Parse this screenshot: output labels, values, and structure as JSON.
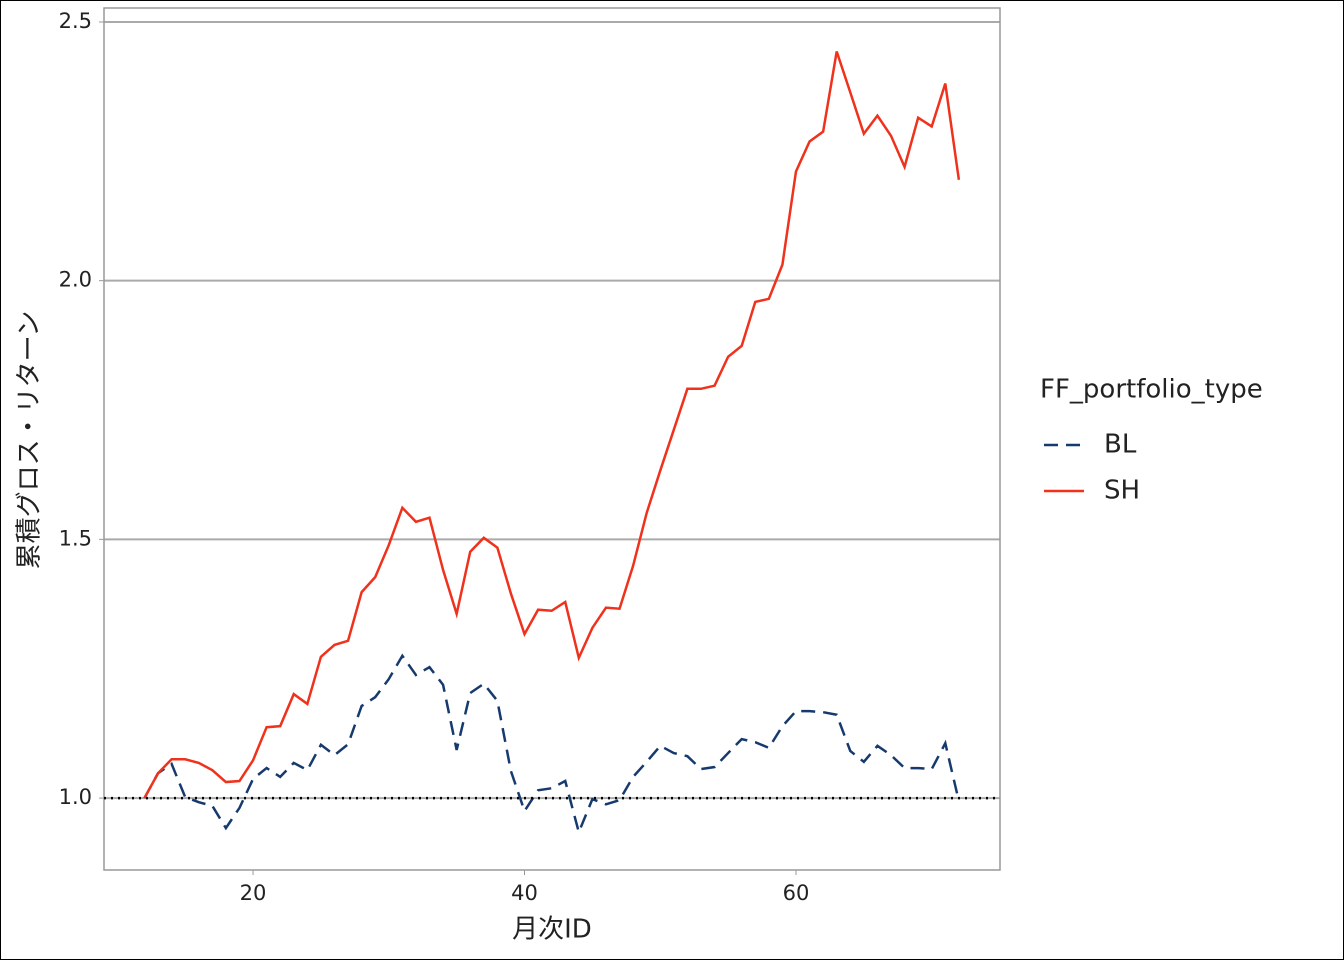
{
  "chart_data": {
    "type": "line",
    "xlabel": "月次ID",
    "ylabel": "累積グロス・リターン",
    "x": [
      12,
      13,
      14,
      15,
      16,
      17,
      18,
      19,
      20,
      21,
      22,
      23,
      24,
      25,
      26,
      27,
      28,
      29,
      30,
      31,
      32,
      33,
      34,
      35,
      36,
      37,
      38,
      39,
      40,
      41,
      42,
      43,
      44,
      45,
      46,
      47,
      48,
      49,
      50,
      51,
      52,
      53,
      54,
      55,
      56,
      57,
      58,
      59,
      60,
      61,
      62,
      63,
      64,
      65,
      66,
      67,
      68,
      69,
      70,
      71,
      72
    ],
    "series": [
      {
        "name": "BL",
        "color": "#173a6e",
        "dash": "dashed",
        "values": [
          1.0,
          1.048,
          1.066,
          1.002,
          0.992,
          0.985,
          0.942,
          0.981,
          1.037,
          1.058,
          1.041,
          1.068,
          1.054,
          1.103,
          1.083,
          1.104,
          1.178,
          1.195,
          1.23,
          1.275,
          1.238,
          1.253,
          1.219,
          1.093,
          1.203,
          1.221,
          1.188,
          1.052,
          0.975,
          1.015,
          1.019,
          1.033,
          0.934,
          0.998,
          0.988,
          0.996,
          1.041,
          1.07,
          1.101,
          1.087,
          1.081,
          1.056,
          1.06,
          1.087,
          1.114,
          1.108,
          1.097,
          1.139,
          1.168,
          1.168,
          1.166,
          1.161,
          1.091,
          1.07,
          1.101,
          1.083,
          1.058,
          1.058,
          1.056,
          1.106,
          0.994
        ]
      },
      {
        "name": "SH",
        "color": "#f0311c",
        "dash": "solid",
        "values": [
          1.0,
          1.048,
          1.075,
          1.075,
          1.068,
          1.054,
          1.031,
          1.033,
          1.073,
          1.137,
          1.139,
          1.201,
          1.182,
          1.273,
          1.296,
          1.304,
          1.398,
          1.427,
          1.489,
          1.561,
          1.534,
          1.542,
          1.441,
          1.356,
          1.476,
          1.503,
          1.484,
          1.395,
          1.317,
          1.364,
          1.362,
          1.379,
          1.271,
          1.329,
          1.368,
          1.366,
          1.449,
          1.551,
          1.633,
          1.712,
          1.791,
          1.791,
          1.797,
          1.853,
          1.874,
          1.959,
          1.965,
          2.031,
          2.211,
          2.269,
          2.288,
          2.443,
          2.364,
          2.284,
          2.319,
          2.28,
          2.22,
          2.315,
          2.298,
          2.381,
          2.195
        ]
      }
    ],
    "xlim": [
      9.02,
      75.03
    ],
    "ylim": [
      0.861,
      2.527
    ],
    "xticks": [
      20,
      40,
      60
    ],
    "yticks": [
      {
        "value": 1,
        "label": "1.0"
      },
      {
        "value": 1.5,
        "label": "1.5"
      },
      {
        "value": 2,
        "label": "2.0"
      },
      {
        "value": 2.5,
        "label": "2.5"
      }
    ],
    "grid": true,
    "hline": 1,
    "legend_title": "FF_portfolio_type",
    "legend": "right"
  }
}
